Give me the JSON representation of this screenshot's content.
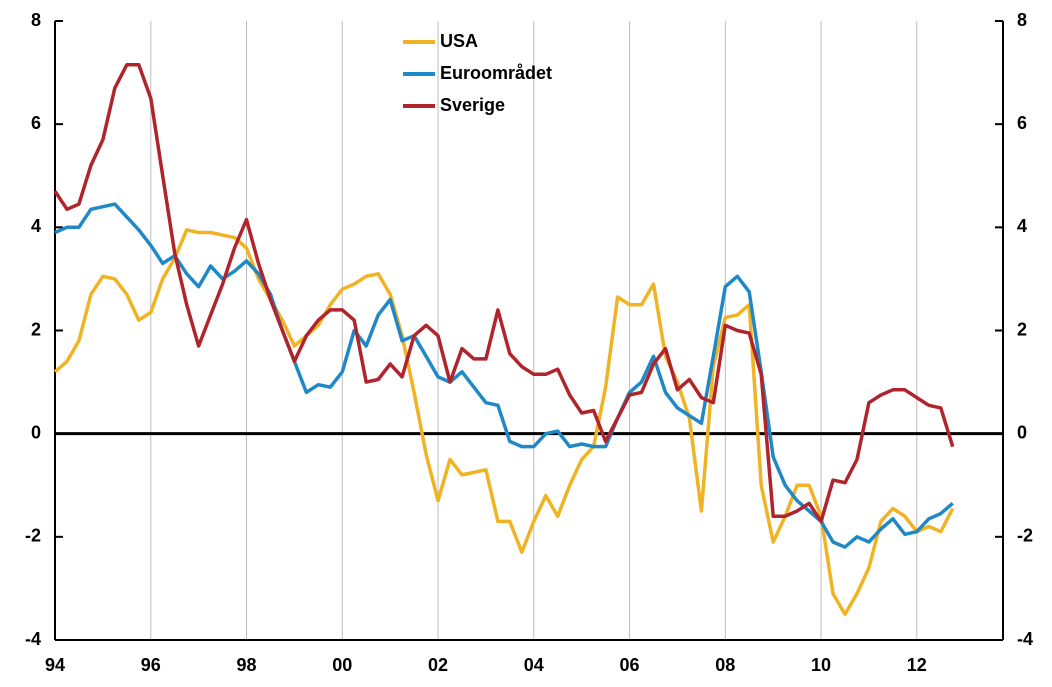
{
  "chart_data": {
    "type": "line",
    "x": [
      1994,
      1994.25,
      1994.5,
      1994.75,
      1995,
      1995.25,
      1995.5,
      1995.75,
      1996,
      1996.25,
      1996.5,
      1996.75,
      1997,
      1997.25,
      1997.5,
      1997.75,
      1998,
      1998.25,
      1998.5,
      1998.75,
      1999,
      1999.25,
      1999.5,
      1999.75,
      2000,
      2000.25,
      2000.5,
      2000.75,
      2001,
      2001.25,
      2001.5,
      2001.75,
      2002,
      2002.25,
      2002.5,
      2002.75,
      2003,
      2003.25,
      2003.5,
      2003.75,
      2004,
      2004.25,
      2004.5,
      2004.75,
      2005,
      2005.25,
      2005.5,
      2005.75,
      2006,
      2006.25,
      2006.5,
      2006.75,
      2007,
      2007.25,
      2007.5,
      2007.75,
      2008,
      2008.25,
      2008.5,
      2008.75,
      2009,
      2009.25,
      2009.5,
      2009.75,
      2010,
      2010.25,
      2010.5,
      2010.75,
      2011,
      2011.25,
      2011.5,
      2011.75,
      2012,
      2012.25,
      2012.5,
      2012.75
    ],
    "series": [
      {
        "name": "USA",
        "color": "#f0b323",
        "values": [
          1.2,
          1.4,
          1.8,
          2.7,
          3.05,
          3.0,
          2.7,
          2.2,
          2.35,
          3.0,
          3.4,
          3.95,
          3.9,
          3.9,
          3.85,
          3.8,
          3.6,
          3.0,
          2.6,
          2.2,
          1.7,
          1.9,
          2.1,
          2.5,
          2.8,
          2.9,
          3.05,
          3.1,
          2.7,
          1.9,
          0.8,
          -0.4,
          -1.3,
          -0.5,
          -0.8,
          -0.75,
          -0.7,
          -1.7,
          -1.7,
          -2.3,
          -1.7,
          -1.2,
          -1.6,
          -1.0,
          -0.5,
          -0.25,
          0.9,
          2.65,
          2.5,
          2.5,
          2.9,
          1.5,
          1.0,
          0.3,
          -1.5,
          1.3,
          2.25,
          2.3,
          2.5,
          -1.0,
          -2.1,
          -1.6,
          -1.0,
          -1.0,
          -1.6,
          -3.1,
          -3.5,
          -3.1,
          -2.6,
          -1.7,
          -1.45,
          -1.6,
          -1.9,
          -1.8,
          -1.9,
          -1.45
        ]
      },
      {
        "name": "Euroområdet",
        "color": "#1f88c6",
        "values": [
          3.9,
          4.0,
          4.0,
          4.35,
          4.4,
          4.45,
          4.2,
          3.95,
          3.65,
          3.3,
          3.45,
          3.1,
          2.85,
          3.25,
          3.0,
          3.15,
          3.35,
          3.1,
          2.7,
          2.0,
          1.4,
          0.8,
          0.95,
          0.9,
          1.2,
          2.0,
          1.7,
          2.3,
          2.6,
          1.8,
          1.9,
          1.5,
          1.1,
          1.0,
          1.2,
          0.9,
          0.6,
          0.55,
          -0.15,
          -0.25,
          -0.25,
          0.0,
          0.05,
          -0.25,
          -0.2,
          -0.25,
          -0.25,
          0.3,
          0.8,
          1.0,
          1.5,
          0.8,
          0.5,
          0.35,
          0.2,
          1.5,
          2.85,
          3.05,
          2.75,
          1.2,
          -0.45,
          -1.0,
          -1.3,
          -1.5,
          -1.7,
          -2.1,
          -2.2,
          -2.0,
          -2.1,
          -1.85,
          -1.65,
          -1.95,
          -1.9,
          -1.65,
          -1.55,
          -1.35
        ]
      },
      {
        "name": "Sverige",
        "color": "#b0242c",
        "values": [
          4.7,
          4.35,
          4.45,
          5.2,
          5.7,
          6.7,
          7.15,
          7.15,
          6.5,
          5.0,
          3.5,
          2.5,
          1.7,
          2.3,
          2.9,
          3.6,
          4.15,
          3.3,
          2.6,
          2.0,
          1.4,
          1.9,
          2.2,
          2.4,
          2.4,
          2.2,
          1.0,
          1.05,
          1.35,
          1.1,
          1.9,
          2.1,
          1.9,
          1.0,
          1.65,
          1.45,
          1.45,
          2.4,
          1.55,
          1.3,
          1.15,
          1.15,
          1.25,
          0.75,
          0.4,
          0.45,
          -0.15,
          0.3,
          0.75,
          0.8,
          1.35,
          1.65,
          0.85,
          1.05,
          0.7,
          0.6,
          2.1,
          2.0,
          1.95,
          1.15,
          -1.6,
          -1.6,
          -1.5,
          -1.35,
          -1.7,
          -0.9,
          -0.95,
          -0.5,
          0.6,
          0.75,
          0.85,
          0.85,
          0.7,
          0.55,
          0.5,
          -0.25
        ]
      }
    ],
    "xlim": [
      1994,
      2013.8
    ],
    "xticks": [
      {
        "value": 1994,
        "label": "94"
      },
      {
        "value": 1996,
        "label": "96"
      },
      {
        "value": 1998,
        "label": "98"
      },
      {
        "value": 2000,
        "label": "00"
      },
      {
        "value": 2002,
        "label": "02"
      },
      {
        "value": 2004,
        "label": "04"
      },
      {
        "value": 2006,
        "label": "06"
      },
      {
        "value": 2008,
        "label": "08"
      },
      {
        "value": 2010,
        "label": "10"
      },
      {
        "value": 2012,
        "label": "12"
      }
    ],
    "ylim": [
      -4,
      8
    ],
    "yticks": [
      -4,
      -2,
      0,
      2,
      4,
      6,
      8
    ],
    "y2lim": [
      -4,
      8
    ],
    "y2ticks": [
      -4,
      -2,
      0,
      2,
      4,
      6,
      8
    ],
    "grid": true
  }
}
